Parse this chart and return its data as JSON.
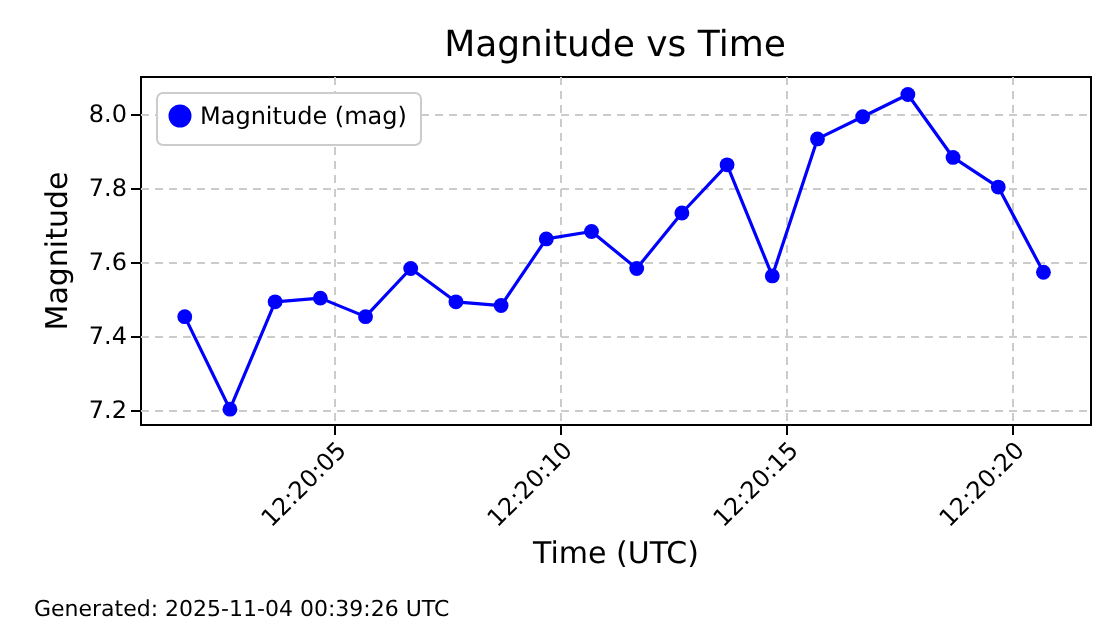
{
  "chart_data": {
    "type": "line",
    "title": "Magnitude vs Time",
    "xlabel": "Time (UTC)",
    "ylabel": "Magnitude",
    "x": [
      12.3338056,
      12.3340833,
      12.3343611,
      12.3346389,
      12.3349167,
      12.3351944,
      12.3354722,
      12.33575,
      12.3360278,
      12.3363056,
      12.3365833,
      12.3368611,
      12.3371389,
      12.3374167,
      12.3376944,
      12.3379722,
      12.33825,
      12.3385278,
      12.3388056,
      12.3390833
    ],
    "series": [
      {
        "name": "Magnitude (mag)",
        "color": "#0000ff",
        "values": [
          7.45,
          7.2,
          7.49,
          7.5,
          7.45,
          7.58,
          7.49,
          7.48,
          7.66,
          7.68,
          7.58,
          7.73,
          7.86,
          7.56,
          7.93,
          7.99,
          8.05,
          7.88,
          7.8,
          7.57
        ]
      }
    ],
    "xlim": [
      12.3335306,
      12.3393694
    ],
    "xticks": [
      {
        "value": 12.3347222,
        "label": "12:20:05"
      },
      {
        "value": 12.3361111,
        "label": "12:20:10"
      },
      {
        "value": 12.3375,
        "label": "12:20:15"
      },
      {
        "value": 12.3388889,
        "label": "12:20:20"
      }
    ],
    "ylim": [
      7.16,
      8.1
    ],
    "yticks": [
      7.2,
      7.4,
      7.6,
      7.8,
      {
        "value": 8,
        "label": "8.0"
      }
    ],
    "grid": true,
    "legend": "top left",
    "marker": "circle",
    "line_style": "solid",
    "annotations": [
      "Generated: 2025-11-04 00:39:26 UTC"
    ]
  }
}
